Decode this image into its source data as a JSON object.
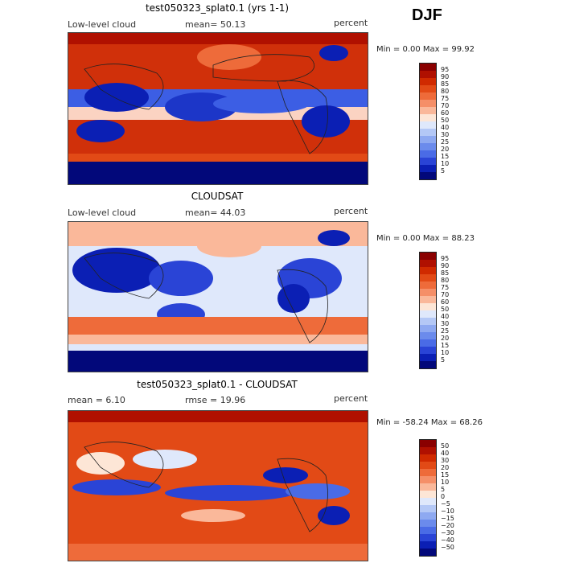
{
  "season": "DJF",
  "panels": [
    {
      "title": "test050323_splat0.1 (yrs 1-1)",
      "left_label": "Low-level cloud",
      "stat1": "mean=  50.13",
      "stat2": "",
      "units": "percent",
      "minmax": "Min =   0.00 Max =  99.92",
      "levels": [
        "95",
        "90",
        "85",
        "80",
        "75",
        "70",
        "60",
        "50",
        "40",
        "30",
        "25",
        "20",
        "15",
        "10",
        "5"
      ],
      "colors": [
        "#8a0000",
        "#b01000",
        "#d02a00",
        "#e24a16",
        "#ee6b3a",
        "#f58f68",
        "#fab89a",
        "#fde6d6",
        "#dfe8fb",
        "#b4c8f6",
        "#8ea9f1",
        "#6b8bec",
        "#4a6be6",
        "#2a44d6",
        "#0b1fb4",
        "#02087a"
      ]
    },
    {
      "title": "CLOUDSAT",
      "left_label": "Low-level cloud",
      "stat1": "mean=  44.03",
      "stat2": "",
      "units": "percent",
      "minmax": "Min =   0.00 Max =  88.23",
      "levels": [
        "95",
        "90",
        "85",
        "80",
        "75",
        "70",
        "60",
        "50",
        "40",
        "30",
        "25",
        "20",
        "15",
        "10",
        "5"
      ],
      "colors": [
        "#8a0000",
        "#b01000",
        "#d02a00",
        "#e24a16",
        "#ee6b3a",
        "#f58f68",
        "#fab89a",
        "#fde6d6",
        "#dfe8fb",
        "#b4c8f6",
        "#8ea9f1",
        "#6b8bec",
        "#4a6be6",
        "#2a44d6",
        "#0b1fb4",
        "#02087a"
      ]
    },
    {
      "title": "test050323_splat0.1 - CLOUDSAT",
      "left_label": "mean =   6.10",
      "stat1": "rmse =  19.96",
      "stat2": "",
      "units": "percent",
      "minmax": "Min = -58.24 Max =  68.26",
      "levels": [
        "50",
        "40",
        "30",
        "20",
        "15",
        "10",
        "5",
        "0",
        "−5",
        "−10",
        "−15",
        "−20",
        "−30",
        "−40",
        "−50"
      ],
      "colors": [
        "#8a0000",
        "#b01000",
        "#d02a00",
        "#e24a16",
        "#ee6b3a",
        "#f58f68",
        "#fab89a",
        "#fde6d6",
        "#dfe8fb",
        "#b4c8f6",
        "#8ea9f1",
        "#6b8bec",
        "#4a6be6",
        "#2a44d6",
        "#0b1fb4",
        "#02087a"
      ]
    }
  ],
  "chart_data": [
    {
      "type": "heatmap",
      "title": "test050323_splat0.1 (yrs 1-1)",
      "variable": "Low-level cloud",
      "units": "percent",
      "mean": 50.13,
      "min": 0.0,
      "max": 99.92,
      "contour_levels": [
        5,
        10,
        15,
        20,
        25,
        30,
        40,
        50,
        60,
        70,
        75,
        80,
        85,
        90,
        95
      ]
    },
    {
      "type": "heatmap",
      "title": "CLOUDSAT",
      "variable": "Low-level cloud",
      "units": "percent",
      "mean": 44.03,
      "min": 0.0,
      "max": 88.23,
      "contour_levels": [
        5,
        10,
        15,
        20,
        25,
        30,
        40,
        50,
        60,
        70,
        75,
        80,
        85,
        90,
        95
      ]
    },
    {
      "type": "heatmap",
      "title": "test050323_splat0.1 - CLOUDSAT",
      "units": "percent",
      "mean": 6.1,
      "rmse": 19.96,
      "min": -58.24,
      "max": 68.26,
      "contour_levels": [
        -50,
        -40,
        -30,
        -20,
        -15,
        -10,
        -5,
        0,
        5,
        10,
        15,
        20,
        30,
        40,
        50
      ]
    }
  ]
}
